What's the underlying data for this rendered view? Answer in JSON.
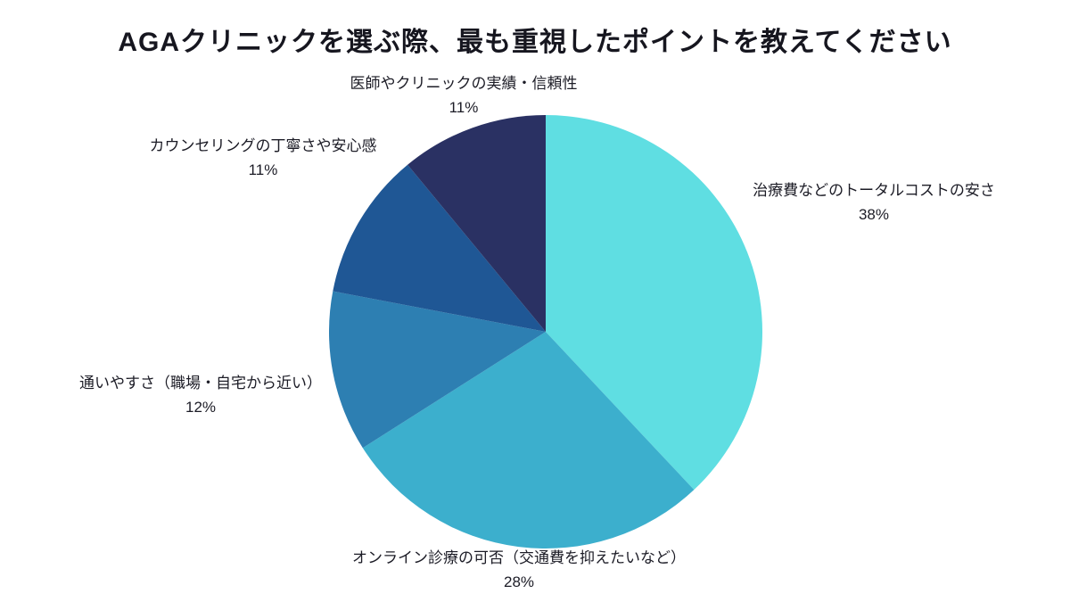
{
  "chart_data": {
    "type": "pie",
    "title": "AGAクリニックを選ぶ際、最も重視したポイントを教えてください",
    "start_angle_deg": 0,
    "direction": "clockwise",
    "legend_position": "none",
    "slices": [
      {
        "label": "治療費などのトータルコストの安さ",
        "value": 38,
        "percent_label": "38%",
        "color": "#5FDEE2"
      },
      {
        "label": "オンライン診療の可否（交通費を抑えたいなど）",
        "value": 28,
        "percent_label": "28%",
        "color": "#3CAFCD"
      },
      {
        "label": "通いやすさ（職場・自宅から近い）",
        "value": 12,
        "percent_label": "12%",
        "color": "#2D7FB2"
      },
      {
        "label": "カウンセリングの丁寧さや安心感",
        "value": 11,
        "percent_label": "11%",
        "color": "#1F5795"
      },
      {
        "label": "医師やクリニックの実績・信頼性",
        "value": 11,
        "percent_label": "11%",
        "color": "#2A3163"
      }
    ]
  }
}
